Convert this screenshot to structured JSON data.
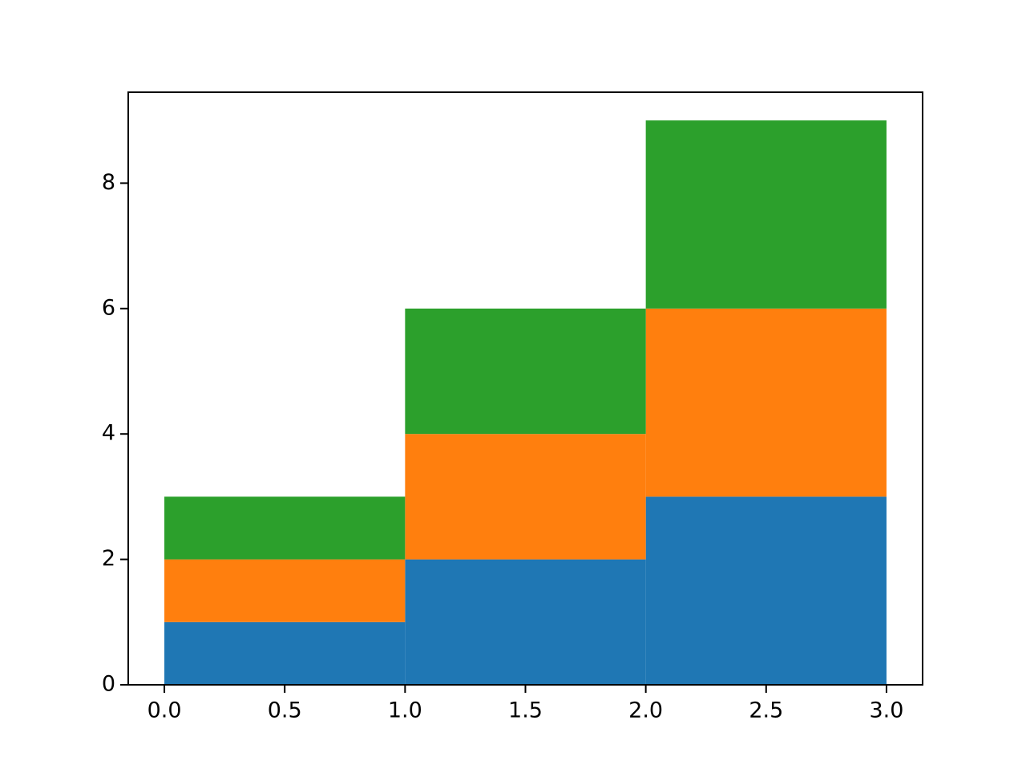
{
  "chart_data": {
    "type": "histogram",
    "stacked": true,
    "bins": [
      0,
      1,
      2,
      3
    ],
    "series": [
      {
        "color": "#1f77b4",
        "values": [
          1,
          2,
          3
        ]
      },
      {
        "color": "#ff7f0e",
        "values": [
          1,
          2,
          3
        ]
      },
      {
        "color": "#2ca02c",
        "values": [
          1,
          2,
          3
        ]
      }
    ],
    "xlim": [
      -0.15,
      3.15
    ],
    "xticks": [
      {
        "value": 0,
        "label": "0.0"
      },
      0.5,
      {
        "value": 1,
        "label": "1.0"
      },
      1.5,
      {
        "value": 2,
        "label": "2.0"
      },
      2.5,
      {
        "value": 3,
        "label": "3.0"
      }
    ],
    "ylim": [
      0,
      9.45
    ],
    "yticks": [
      0,
      2,
      4,
      6,
      8
    ],
    "grid": false
  }
}
